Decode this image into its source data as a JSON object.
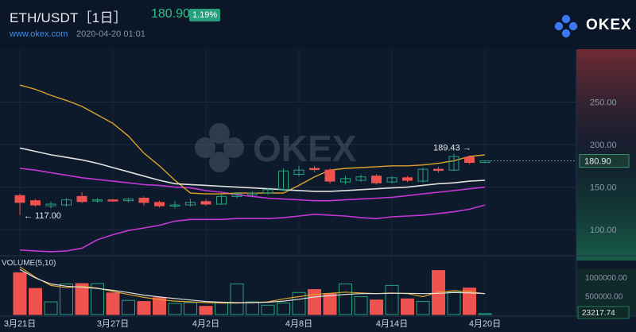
{
  "header": {
    "pair": "ETH/USDT［1日］",
    "price": "180.90",
    "change": "1.19%",
    "site": "www.okex.com",
    "timestamp": "2020-04-20 01:01",
    "logo_text": "OKEX",
    "watermark": "OKEX"
  },
  "colors": {
    "up": "#26a17b",
    "down": "#ef5350",
    "ma_white": "#e0e0e0",
    "ma_orange": "#e0a32a",
    "band_magenta": "#c436d4",
    "bg": "#0d1a2b"
  },
  "chart_data": [
    {
      "type": "candlestick",
      "title": "ETH/USDT［1日］",
      "ylim": [
        73,
        300
      ],
      "yticks": [
        100,
        150,
        200,
        250
      ],
      "ytick_labels": [
        "100.00",
        "150.00",
        "200.00",
        "250.00"
      ],
      "x_labels": [
        {
          "label": "3月21日",
          "day": 0
        },
        {
          "label": "3月27日",
          "day": 6
        },
        {
          "label": "4月2日",
          "day": 12
        },
        {
          "label": "4月8日",
          "day": 18
        },
        {
          "label": "4月14日",
          "day": 24
        },
        {
          "label": "4月20日",
          "day": 30
        }
      ],
      "annotations": {
        "high": {
          "label": "189.43",
          "day": 28,
          "value": 189.43
        },
        "low": {
          "label": "117.00",
          "day": 0,
          "value": 117.0
        }
      },
      "last_price": "180.90",
      "candles": [
        {
          "o": 140,
          "c": 132,
          "h": 142,
          "l": 117
        },
        {
          "o": 134,
          "c": 129,
          "h": 136,
          "l": 127
        },
        {
          "o": 128,
          "c": 130,
          "h": 133,
          "l": 125
        },
        {
          "o": 129,
          "c": 135,
          "h": 137,
          "l": 127
        },
        {
          "o": 139,
          "c": 133,
          "h": 144,
          "l": 131
        },
        {
          "o": 134,
          "c": 135,
          "h": 137,
          "l": 132
        },
        {
          "o": 135,
          "c": 134,
          "h": 136,
          "l": 133
        },
        {
          "o": 134,
          "c": 136,
          "h": 137,
          "l": 132
        },
        {
          "o": 137,
          "c": 132,
          "h": 139,
          "l": 128
        },
        {
          "o": 132,
          "c": 128,
          "h": 134,
          "l": 126
        },
        {
          "o": 128,
          "c": 129,
          "h": 134,
          "l": 125
        },
        {
          "o": 129,
          "c": 132,
          "h": 136,
          "l": 127
        },
        {
          "o": 133,
          "c": 130,
          "h": 136,
          "l": 128
        },
        {
          "o": 130,
          "c": 139,
          "h": 141,
          "l": 129
        },
        {
          "o": 139,
          "c": 142,
          "h": 144,
          "l": 137
        },
        {
          "o": 141,
          "c": 143,
          "h": 145,
          "l": 139
        },
        {
          "o": 143,
          "c": 147,
          "h": 149,
          "l": 141
        },
        {
          "o": 147,
          "c": 169,
          "h": 172,
          "l": 145
        },
        {
          "o": 165,
          "c": 170,
          "h": 175,
          "l": 163
        },
        {
          "o": 172,
          "c": 171,
          "h": 175,
          "l": 168
        },
        {
          "o": 170,
          "c": 157,
          "h": 172,
          "l": 154
        },
        {
          "o": 156,
          "c": 160,
          "h": 163,
          "l": 153
        },
        {
          "o": 158,
          "c": 162,
          "h": 165,
          "l": 156
        },
        {
          "o": 163,
          "c": 155,
          "h": 165,
          "l": 153
        },
        {
          "o": 156,
          "c": 161,
          "h": 163,
          "l": 154
        },
        {
          "o": 161,
          "c": 158,
          "h": 163,
          "l": 156
        },
        {
          "o": 157,
          "c": 171,
          "h": 173,
          "l": 155
        },
        {
          "o": 171,
          "c": 170,
          "h": 174,
          "l": 167
        },
        {
          "o": 170,
          "c": 186,
          "h": 189.43,
          "l": 169
        },
        {
          "o": 185,
          "c": 179,
          "h": 187,
          "l": 177
        },
        {
          "o": 179,
          "c": 180.9,
          "h": 181,
          "l": 178
        }
      ],
      "ma_white": [
        196,
        192,
        188,
        185,
        182,
        178,
        173,
        168,
        163,
        158,
        154,
        153,
        152,
        151,
        150,
        149,
        148,
        147,
        146,
        145,
        145,
        146,
        147,
        148,
        149,
        150,
        152,
        154,
        155,
        157,
        158
      ],
      "ma_orange": [
        270,
        265,
        258,
        252,
        245,
        235,
        225,
        210,
        190,
        175,
        158,
        143,
        142,
        142,
        143,
        143,
        143,
        143,
        152,
        162,
        170,
        172,
        173,
        174,
        175,
        175,
        176,
        178,
        181,
        186,
        188
      ],
      "band_upper": [
        172,
        170,
        167,
        164,
        161,
        159,
        157,
        155,
        153,
        152,
        150,
        149,
        146,
        144,
        141,
        139,
        137,
        136,
        135,
        134,
        134,
        135,
        136,
        137,
        138,
        140,
        142,
        144,
        146,
        148,
        150
      ],
      "band_lower": [
        76,
        75,
        74,
        75,
        78,
        88,
        94,
        99,
        102,
        105,
        110,
        112,
        112,
        112,
        113,
        113,
        113,
        114,
        116,
        118,
        117,
        116,
        114,
        113,
        115,
        116,
        117,
        119,
        121,
        124,
        129
      ]
    },
    {
      "type": "bar",
      "title": "VOLUME(5,10)",
      "ylim": [
        0,
        1300000
      ],
      "yticks": [
        500000,
        1000000
      ],
      "ytick_labels": [
        "500000.00",
        "1000000.00"
      ],
      "last_volume": "23217.74",
      "values": [
        1120000,
        700000,
        340000,
        820000,
        830000,
        830000,
        580000,
        380000,
        350000,
        450000,
        300000,
        320000,
        220000,
        320000,
        820000,
        340000,
        250000,
        310000,
        590000,
        670000,
        560000,
        820000,
        480000,
        390000,
        780000,
        420000,
        350000,
        1180000,
        600000,
        710000,
        23217.74
      ],
      "ma5": [
        1280000,
        1000000,
        780000,
        720000,
        760000,
        710000,
        620000,
        540000,
        460000,
        400000,
        360000,
        340000,
        320000,
        310000,
        310000,
        320000,
        340000,
        420000,
        480000,
        540000,
        570000,
        600000,
        580000,
        560000,
        580000,
        560000,
        480000,
        600000,
        640000,
        610000,
        560000
      ],
      "ma10": [
        1210000,
        980000,
        820000,
        760000,
        730000,
        700000,
        650000,
        590000,
        520000,
        470000,
        430000,
        390000,
        350000,
        330000,
        320000,
        320000,
        330000,
        360000,
        410000,
        470000,
        510000,
        540000,
        560000,
        560000,
        570000,
        570000,
        560000,
        570000,
        590000,
        580000,
        560000
      ]
    }
  ]
}
